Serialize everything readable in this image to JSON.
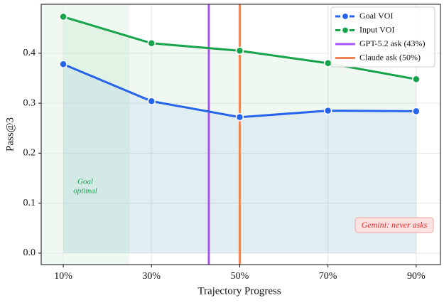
{
  "chart_data": {
    "type": "line",
    "xlabel": "Trajectory Progress",
    "ylabel": "Pass@3",
    "x": [
      10,
      30,
      50,
      70,
      90
    ],
    "xlim": [
      5,
      95.5
    ],
    "ylim": [
      -0.023,
      0.498
    ],
    "xticks": [
      {
        "value": 10,
        "label": "10%"
      },
      {
        "value": 30,
        "label": "30%"
      },
      {
        "value": 50,
        "label": "50%"
      },
      {
        "value": 70,
        "label": "70%"
      },
      {
        "value": 90,
        "label": "90%"
      }
    ],
    "yticks": [
      {
        "value": 0,
        "label": "0.0"
      },
      0.1,
      0.2,
      0.3,
      0.4
    ],
    "grid": true,
    "legend": "upper right",
    "series": [
      {
        "name": "Goal VOI",
        "color": "#2563eb",
        "values": [
          0.378,
          0.304,
          0.272,
          0.285,
          0.284
        ]
      },
      {
        "name": "Input VOI",
        "color": "#16a34a",
        "values": [
          0.473,
          0.42,
          0.405,
          0.38,
          0.348
        ]
      }
    ],
    "vlines": [
      {
        "name": "GPT-5.2 ask (43%)",
        "x": 43,
        "color": "#a855f7"
      },
      {
        "name": "Claude ask (50%)",
        "x": 50,
        "color": "#ef8354"
      }
    ],
    "region": {
      "lines": [
        "Goal",
        "optimal"
      ],
      "xrange": [
        5,
        25
      ],
      "color": "#16a34a"
    },
    "annotation": "Gemini: never asks"
  }
}
